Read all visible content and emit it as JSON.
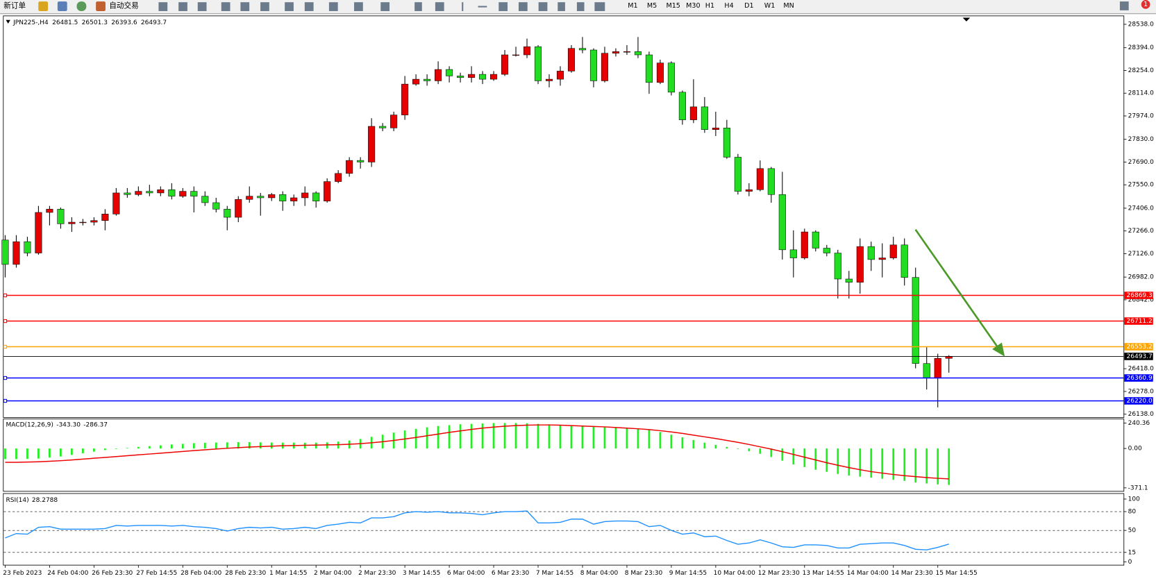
{
  "toolbar": {
    "buttons": [
      "新订单",
      "自动交易"
    ],
    "timeframes": [
      "M1",
      "M5",
      "M15",
      "M30",
      "H1",
      "H4",
      "D1",
      "W1",
      "MN"
    ],
    "notifications": 1
  },
  "chart_data": [
    {
      "type": "candlestick",
      "title": "JPN225-,H4",
      "categories": [
        "23 Feb 2023",
        null,
        null,
        null,
        "24 Feb 04:00",
        null,
        null,
        null,
        "26 Feb 23:30",
        null,
        null,
        null,
        "27 Feb 14:55",
        null,
        null,
        null,
        "28 Feb 04:00",
        null,
        null,
        null,
        "28 Feb 23:30",
        null,
        null,
        null,
        "1 Mar 14:55",
        null,
        null,
        null,
        "2 Mar 04:00",
        null,
        null,
        null,
        "2 Mar 23:30",
        null,
        null,
        null,
        "3 Mar 14:55",
        null,
        null,
        null,
        "6 Mar 04:00",
        null,
        null,
        null,
        "6 Mar 23:30",
        null,
        null,
        null,
        "7 Mar 14:55",
        null,
        null,
        null,
        "8 Mar 04:00",
        null,
        null,
        null,
        "8 Mar 23:30",
        null,
        null,
        null,
        "9 Mar 14:55",
        null,
        null,
        null,
        "10 Mar 04:00",
        null,
        null,
        null,
        "12 Mar 23:30",
        null,
        null,
        null,
        "13 Mar 14:55",
        null,
        null,
        null,
        "14 Mar 04:00",
        null,
        null,
        null,
        "14 Mar 23:30",
        null,
        null,
        null,
        "15 Mar 14:55",
        null
      ],
      "open": [
        27210,
        27060,
        27200,
        27130,
        27380,
        27400,
        27310,
        27320,
        27320,
        27330,
        27370,
        27500,
        27490,
        27510,
        27500,
        27520,
        27480,
        27510,
        27480,
        27440,
        27400,
        27350,
        27460,
        27480,
        27470,
        27490,
        27450,
        27470,
        27500,
        27450,
        27570,
        27620,
        27700,
        27690,
        27910,
        27900,
        27980,
        28170,
        28200,
        28190,
        28260,
        28220,
        28210,
        28230,
        28200,
        28230,
        28350,
        28350,
        28400,
        28190,
        28200,
        28250,
        28390,
        28380,
        28190,
        28360,
        28370,
        28370,
        28350,
        28180,
        28300,
        28120,
        27950,
        28030,
        27890,
        27900,
        27720,
        27510,
        27520,
        27650,
        27490,
        27150,
        27100,
        27260,
        27160,
        27130,
        26970,
        26950,
        27170,
        27090,
        27100,
        27180,
        26980,
        26450,
        26360,
        26481.5
      ],
      "high": [
        27240,
        27240,
        27230,
        27420,
        27420,
        27410,
        27350,
        27340,
        27350,
        27400,
        27530,
        27530,
        27540,
        27550,
        27540,
        27560,
        27530,
        27540,
        27510,
        27470,
        27420,
        27480,
        27540,
        27500,
        27500,
        27510,
        27490,
        27540,
        27510,
        27590,
        27640,
        27720,
        27720,
        27960,
        27930,
        28000,
        28220,
        28230,
        28230,
        28310,
        28280,
        28240,
        28280,
        28250,
        28250,
        28380,
        28400,
        28450,
        28410,
        28230,
        28280,
        28410,
        28460,
        28390,
        28400,
        28390,
        28410,
        28460,
        28370,
        28320,
        28310,
        28130,
        28200,
        28090,
        28000,
        27950,
        27740,
        27560,
        27700,
        27660,
        27630,
        27270,
        27280,
        27270,
        27180,
        27150,
        27020,
        27220,
        27200,
        27190,
        27230,
        27220,
        27040,
        26550,
        26510,
        26501.3
      ],
      "low": [
        26980,
        27040,
        27110,
        27120,
        27300,
        27280,
        27260,
        27300,
        27300,
        27270,
        27360,
        27470,
        27480,
        27480,
        27480,
        27460,
        27470,
        27380,
        27420,
        27380,
        27270,
        27320,
        27440,
        27360,
        27450,
        27390,
        27420,
        27420,
        27410,
        27440,
        27560,
        27600,
        27650,
        27660,
        27880,
        27880,
        27950,
        28160,
        28160,
        28170,
        28180,
        28180,
        28180,
        28170,
        28190,
        28220,
        28340,
        28330,
        28170,
        28150,
        28160,
        28240,
        28360,
        28150,
        28180,
        28340,
        28350,
        28330,
        28110,
        28170,
        28100,
        27920,
        27930,
        27870,
        27850,
        27710,
        27490,
        27480,
        27510,
        27440,
        27090,
        26980,
        27090,
        27140,
        27110,
        26850,
        26850,
        26880,
        27020,
        26980,
        27090,
        26930,
        26420,
        26290,
        26180,
        26393.6
      ],
      "close": [
        27060,
        27200,
        27130,
        27380,
        27400,
        27310,
        27320,
        27320,
        27330,
        27370,
        27500,
        27490,
        27510,
        27500,
        27520,
        27480,
        27510,
        27480,
        27440,
        27400,
        27350,
        27460,
        27480,
        27470,
        27490,
        27450,
        27470,
        27500,
        27450,
        27570,
        27620,
        27700,
        27690,
        27910,
        27900,
        27980,
        28170,
        28200,
        28190,
        28260,
        28220,
        28210,
        28230,
        28200,
        28230,
        28350,
        28350,
        28400,
        28190,
        28200,
        28250,
        28390,
        28380,
        28190,
        28360,
        28370,
        28370,
        28350,
        28180,
        28300,
        28120,
        27950,
        28030,
        27890,
        27900,
        27720,
        27510,
        27520,
        27650,
        27490,
        27150,
        27100,
        27260,
        27160,
        27130,
        26970,
        26950,
        27170,
        27090,
        27100,
        27180,
        26980,
        26450,
        26360,
        26481.5,
        26493.7
      ],
      "up_color": "#e60000",
      "down_color": "#22dd22",
      "ylim": [
        26120,
        28574
      ],
      "yticks": [
        {
          "value": 28538,
          "label": "28538.0"
        },
        {
          "value": 28394,
          "label": "28394.0"
        },
        {
          "value": 28254,
          "label": "28254.0"
        },
        {
          "value": 28114,
          "label": "28114.0"
        },
        {
          "value": 27974,
          "label": "27974.0"
        },
        {
          "value": 27830,
          "label": "27830.0"
        },
        {
          "value": 27690,
          "label": "27690.0"
        },
        {
          "value": 27550,
          "label": "27550.0"
        },
        {
          "value": 27406,
          "label": "27406.0"
        },
        {
          "value": 27266,
          "label": "27266.0"
        },
        {
          "value": 27126,
          "label": "27126.0"
        },
        {
          "value": 26982,
          "label": "26982.0"
        },
        {
          "value": 26842,
          "label": "26842.0"
        },
        {
          "value": 26418,
          "label": "26418.0"
        },
        {
          "value": 26278,
          "label": "26278.0"
        },
        {
          "value": 26138,
          "label": "26138.0"
        }
      ],
      "levels": [
        {
          "value": 26869.3,
          "color": "#ff0000"
        },
        {
          "value": 26711.2,
          "color": "#ff0000"
        },
        {
          "value": 26553.2,
          "color": "#ffa500"
        },
        {
          "value": 26360.9,
          "color": "#0000ff"
        },
        {
          "value": 26220,
          "label": "26220.0",
          "color": "#0000ff"
        }
      ]
    },
    {
      "type": "macd",
      "title": "MACD(12,26,9)",
      "series": [
        {
          "color": "#22ee22",
          "values": [
            -100,
            -100,
            -98,
            -95,
            -85,
            -75,
            -60,
            -45,
            -30,
            -15,
            -5,
            5,
            15,
            22,
            30,
            38,
            44,
            50,
            54,
            56,
            58,
            60,
            60,
            58,
            56,
            55,
            55,
            54,
            55,
            58,
            65,
            75,
            90,
            110,
            130,
            150,
            170,
            185,
            200,
            212,
            220,
            228,
            232,
            236,
            240,
            240,
            240,
            238,
            232,
            228,
            222,
            218,
            214,
            208,
            204,
            200,
            196,
            190,
            175,
            155,
            130,
            105,
            80,
            55,
            35,
            15,
            -5,
            -25,
            -50,
            -80,
            -115,
            -150,
            -175,
            -200,
            -220,
            -240,
            -255,
            -265,
            -275,
            -285,
            -295,
            -305,
            -320,
            -330,
            -338,
            -343.3
          ],
          "value_labels": [
            null,
            null,
            null,
            null,
            null,
            null,
            null,
            null,
            null,
            null,
            null,
            null,
            null,
            null,
            null,
            null,
            null,
            null,
            null,
            null,
            null,
            null,
            null,
            null,
            null,
            null,
            null,
            null,
            null,
            null,
            null,
            null,
            null,
            null,
            null,
            null,
            null,
            null,
            null,
            null,
            null,
            null,
            null,
            null,
            null,
            null,
            null,
            null,
            null,
            null,
            null,
            null,
            null,
            null,
            null,
            null,
            null,
            null,
            null,
            null,
            null,
            null,
            null,
            null,
            null,
            null,
            null,
            null,
            null,
            null,
            null,
            null,
            null,
            null,
            null,
            null,
            null,
            null,
            null,
            null,
            null,
            null,
            null,
            null,
            null,
            "-343.30"
          ]
        },
        {
          "color": "#ee0000",
          "values": [
            -130,
            -130,
            -128,
            -125,
            -120,
            -115,
            -108,
            -100,
            -92,
            -84,
            -76,
            -68,
            -60,
            -52,
            -44,
            -36,
            -28,
            -20,
            -12,
            -5,
            2,
            8,
            14,
            18,
            22,
            26,
            28,
            30,
            32,
            34,
            36,
            40,
            46,
            54,
            64,
            76,
            90,
            104,
            120,
            136,
            152,
            166,
            180,
            192,
            202,
            210,
            216,
            220,
            222,
            222,
            220,
            216,
            212,
            208,
            204,
            198,
            192,
            186,
            178,
            168,
            156,
            142,
            126,
            110,
            94,
            76,
            58,
            38,
            16,
            -6,
            -30,
            -56,
            -82,
            -108,
            -134,
            -158,
            -180,
            -200,
            -218,
            -232,
            -245,
            -256,
            -265,
            -274,
            -281,
            -286.37
          ]
        }
      ],
      "ylim": [
        -400,
        275
      ],
      "yticks": [
        240.36,
        {
          "value": 0,
          "label": "0.00"
        },
        -371.1
      ]
    },
    {
      "type": "line",
      "title": "RSI(14)",
      "series": [
        {
          "color": "#1e90ff",
          "values": [
            38,
            45,
            44,
            55,
            56,
            52,
            52,
            52,
            52,
            53,
            58,
            57,
            58,
            58,
            58,
            57,
            58,
            56,
            55,
            53,
            49,
            53,
            55,
            54,
            55,
            52,
            53,
            55,
            53,
            58,
            60,
            63,
            62,
            70,
            70,
            72,
            78,
            80,
            79,
            80,
            78,
            78,
            77,
            75,
            78,
            80,
            80,
            81,
            62,
            62,
            63,
            68,
            68,
            60,
            64,
            65,
            65,
            64,
            56,
            58,
            50,
            44,
            46,
            40,
            41,
            34,
            28,
            30,
            35,
            30,
            24,
            23,
            27,
            27,
            26,
            22,
            22,
            28,
            29,
            30,
            30,
            26,
            20,
            19,
            23,
            28.2788
          ]
        }
      ],
      "ylim": [
        0,
        100
      ],
      "yticks": [
        100,
        80,
        50,
        15,
        0
      ]
    }
  ]
}
